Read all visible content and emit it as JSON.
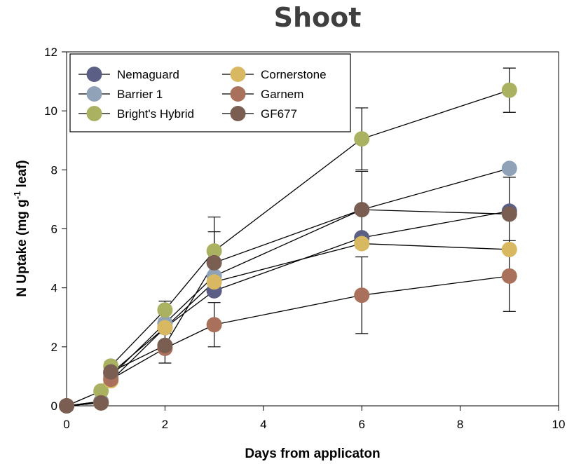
{
  "chart_data": {
    "type": "scatter",
    "title": "Shoot",
    "xlabel": "Days from applicaton",
    "ylabel_parts": [
      "N Uptake (mg g",
      "-1",
      " leaf)"
    ],
    "xlim": [
      0,
      10
    ],
    "ylim": [
      0,
      12
    ],
    "xticks": [
      0,
      2,
      4,
      6,
      8,
      10
    ],
    "yticks": [
      0,
      2,
      4,
      6,
      8,
      10,
      12
    ],
    "grid": false,
    "legend_position": "top-left",
    "x": [
      0,
      0.7,
      0.9,
      2,
      3,
      6,
      9
    ],
    "series": [
      {
        "name": "Nemaguard",
        "color": "#5b5f86",
        "values": [
          0,
          0.15,
          1.1,
          2.65,
          3.9,
          5.7,
          6.6
        ],
        "errors": [
          0,
          0,
          0,
          0,
          0,
          0,
          0
        ]
      },
      {
        "name": "Barrier 1",
        "color": "#8fa2b8",
        "values": [
          0,
          0.15,
          1.0,
          2.8,
          4.4,
          6.65,
          8.05
        ],
        "errors": [
          0,
          0,
          0,
          0,
          0,
          0,
          0
        ]
      },
      {
        "name": "Bright's  Hybrid",
        "color": "#aab261",
        "values": [
          0,
          0.5,
          1.35,
          3.25,
          5.25,
          9.05,
          10.7
        ],
        "errors": [
          0,
          0,
          0.15,
          0.3,
          1.15,
          1.05,
          0.75
        ]
      },
      {
        "name": "Cornerstone",
        "color": "#d9b862",
        "values": [
          0,
          0.1,
          0.85,
          2.65,
          4.2,
          5.5,
          5.3
        ],
        "errors": [
          0,
          0,
          0,
          0,
          0,
          0,
          0
        ]
      },
      {
        "name": "Garnem",
        "color": "#a9705b",
        "values": [
          0,
          0.1,
          0.9,
          1.95,
          2.75,
          3.75,
          4.4
        ],
        "errors": [
          0,
          0,
          0,
          0.5,
          0.75,
          1.3,
          1.2
        ]
      },
      {
        "name": "GF677",
        "color": "#7a5e52",
        "values": [
          0,
          0.1,
          1.15,
          2.05,
          4.85,
          6.65,
          6.5
        ],
        "errors": [
          0,
          0,
          0,
          0,
          1.05,
          1.3,
          1.25
        ]
      }
    ]
  }
}
